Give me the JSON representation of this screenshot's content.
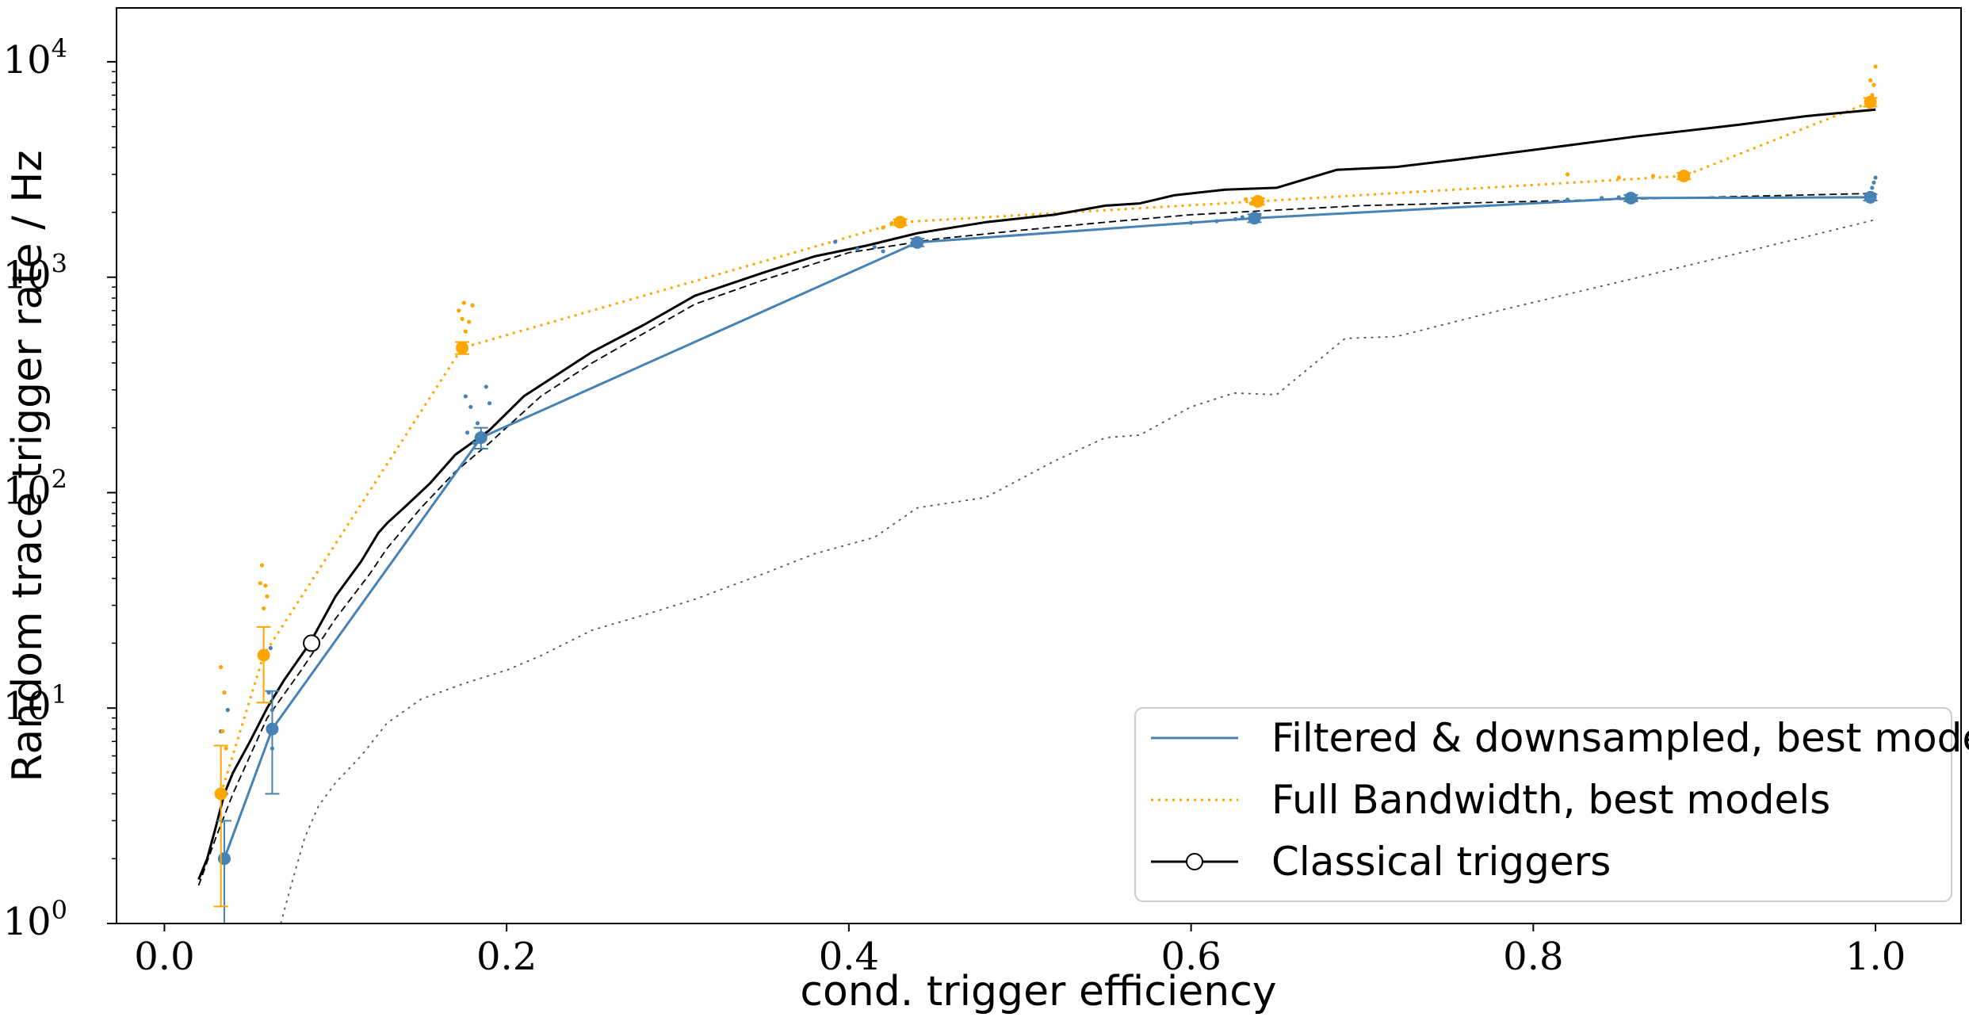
{
  "chart_data": {
    "type": "line",
    "title": "",
    "xlabel": "cond. trigger efficiency",
    "ylabel": "Random trace trigger rate / Hz",
    "xlim": [
      -0.028,
      1.05
    ],
    "ylim": [
      1,
      17782
    ],
    "yscale": "log",
    "grid": false,
    "legend_position": "bottom-right",
    "x_ticks": [
      0.0,
      0.2,
      0.4,
      0.6,
      0.8,
      1.0
    ],
    "x_tick_labels": [
      "0.0",
      "0.2",
      "0.4",
      "0.6",
      "0.8",
      "1.0"
    ],
    "y_ticks": [
      1,
      10,
      100,
      1000,
      10000
    ],
    "y_tick_labels": [
      {
        "base": "10",
        "exp": "0"
      },
      {
        "base": "10",
        "exp": "1"
      },
      {
        "base": "10",
        "exp": "2"
      },
      {
        "base": "10",
        "exp": "3"
      },
      {
        "base": "10",
        "exp": "4"
      }
    ],
    "colors": {
      "filtered": "#4682b4",
      "full_bandwidth": "#ffa500",
      "classical": "#000000",
      "classical_dashed": "#000000",
      "classical_dotted": "#555555"
    },
    "series": [
      {
        "name": "Filtered & downsampled, best models",
        "style": "solid",
        "color": "#4682b4",
        "x": [
          0.035,
          0.063,
          0.185,
          0.44,
          0.637,
          0.857,
          0.997
        ],
        "y": [
          2.0,
          8.0,
          180,
          1450,
          1880,
          2330,
          2350
        ],
        "yerr_low": [
          1.0,
          4.0,
          20,
          60,
          80,
          80,
          80
        ],
        "yerr_high": [
          1.0,
          4.0,
          20,
          60,
          80,
          80,
          80
        ],
        "scatter_x": [
          0.033,
          0.037,
          0.035,
          0.036,
          0.061,
          0.062,
          0.064,
          0.063,
          0.063,
          0.176,
          0.179,
          0.183,
          0.188,
          0.19,
          0.177,
          0.181,
          0.392,
          0.405,
          0.415,
          0.42,
          0.6,
          0.615,
          0.626,
          0.63,
          0.64,
          0.82,
          0.84,
          0.85,
          0.86,
          0.996,
          0.998,
          0.999,
          1.0
        ],
        "scatter_y": [
          7.8,
          9.8,
          11.8,
          4.0,
          11.8,
          19.0,
          8.2,
          9.8,
          6.5,
          280,
          250,
          210,
          310,
          260,
          190,
          170,
          1460,
          1350,
          1380,
          1320,
          1790,
          1820,
          1860,
          1900,
          1950,
          2290,
          2330,
          2350,
          2300,
          2450,
          2600,
          2750,
          2900
        ]
      },
      {
        "name": "Full Bandwidth, best models",
        "style": "dotted",
        "color": "#ffa500",
        "x": [
          0.033,
          0.058,
          0.174,
          0.43,
          0.639,
          0.888,
          0.997
        ],
        "y": [
          4.0,
          17.6,
          470,
          1800,
          2250,
          2950,
          6500
        ],
        "yerr_low": [
          2.8,
          7.0,
          30,
          60,
          80,
          100,
          300
        ],
        "yerr_high": [
          2.7,
          6.2,
          30,
          60,
          80,
          100,
          300
        ],
        "scatter_x": [
          0.033,
          0.035,
          0.034,
          0.036,
          0.057,
          0.059,
          0.06,
          0.058,
          0.056,
          0.172,
          0.175,
          0.178,
          0.18,
          0.174,
          0.176,
          0.42,
          0.425,
          0.43,
          0.635,
          0.64,
          0.632,
          0.82,
          0.85,
          0.87,
          0.89,
          0.996,
          0.998,
          0.999,
          1.0,
          0.997
        ],
        "scatter_y": [
          15.5,
          11.8,
          7.8,
          6.5,
          46,
          37,
          33,
          29,
          38,
          700,
          760,
          620,
          740,
          640,
          560,
          1700,
          1780,
          1850,
          2200,
          2280,
          2300,
          3000,
          2900,
          2950,
          3000,
          6200,
          7000,
          7800,
          9500,
          8200
        ]
      },
      {
        "name": "Classical triggers",
        "style": "solid",
        "color": "#000000",
        "x": [
          0.02,
          0.025,
          0.03,
          0.035,
          0.04,
          0.05,
          0.06,
          0.07,
          0.085,
          0.1,
          0.115,
          0.125,
          0.13,
          0.14,
          0.155,
          0.17,
          0.19,
          0.21,
          0.25,
          0.28,
          0.31,
          0.35,
          0.38,
          0.41,
          0.44,
          0.48,
          0.52,
          0.55,
          0.57,
          0.59,
          0.62,
          0.65,
          0.685,
          0.72,
          0.76,
          0.8,
          0.86,
          0.92,
          0.96,
          1.0
        ],
        "y": [
          1.6,
          2.0,
          2.8,
          4.0,
          5.0,
          7.0,
          10.0,
          13.5,
          20.0,
          33,
          48,
          65,
          72,
          85,
          110,
          150,
          195,
          280,
          450,
          600,
          820,
          1050,
          1250,
          1400,
          1600,
          1800,
          1950,
          2150,
          2200,
          2400,
          2550,
          2600,
          3150,
          3250,
          3550,
          3900,
          4500,
          5100,
          5600,
          6000
        ]
      },
      {
        "name": "",
        "style": "dashed",
        "color": "#000000",
        "x": [
          0.02,
          0.03,
          0.04,
          0.05,
          0.06,
          0.08,
          0.1,
          0.12,
          0.13,
          0.15,
          0.17,
          0.19,
          0.22,
          0.25,
          0.31,
          0.35,
          0.4,
          0.45,
          0.5,
          0.55,
          0.6,
          0.65,
          0.7,
          0.8,
          0.9,
          1.0
        ],
        "y": [
          1.5,
          2.5,
          4.0,
          6.0,
          9.0,
          15,
          26,
          42,
          55,
          85,
          125,
          170,
          280,
          400,
          750,
          970,
          1300,
          1500,
          1650,
          1800,
          1950,
          2050,
          2150,
          2250,
          2350,
          2450
        ]
      },
      {
        "name": "",
        "style": "dotted",
        "color": "#555555",
        "x": [
          0.068,
          0.075,
          0.082,
          0.09,
          0.1,
          0.115,
          0.13,
          0.15,
          0.175,
          0.2,
          0.22,
          0.25,
          0.28,
          0.31,
          0.35,
          0.38,
          0.415,
          0.44,
          0.48,
          0.52,
          0.55,
          0.57,
          0.6,
          0.625,
          0.65,
          0.69,
          0.72,
          0.78,
          0.85,
          0.93,
          1.0
        ],
        "y": [
          1.0,
          1.6,
          2.5,
          3.5,
          4.5,
          6.0,
          8.5,
          11,
          13,
          15,
          17.5,
          23,
          27,
          32,
          42,
          52,
          62,
          85,
          95,
          140,
          180,
          185,
          250,
          290,
          285,
          520,
          530,
          700,
          950,
          1350,
          1850
        ]
      }
    ],
    "highlight_point": {
      "x": 0.086,
      "y": 20.0,
      "series": "Classical triggers"
    },
    "legend": [
      {
        "label": "Filtered & downsampled, best models",
        "style": "solid",
        "color": "#4682b4",
        "marker": "none"
      },
      {
        "label": "Full Bandwidth, best models",
        "style": "dotted",
        "color": "#ffa500",
        "marker": "none"
      },
      {
        "label": "Classical triggers",
        "style": "solid",
        "color": "#000000",
        "marker": "open-circle"
      }
    ]
  }
}
